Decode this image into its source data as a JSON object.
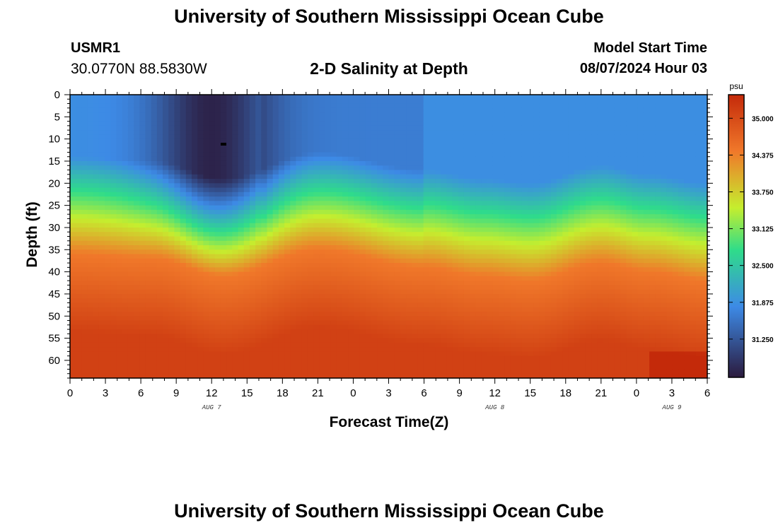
{
  "header": {
    "title": "University of Southern Mississippi Ocean Cube",
    "station_id": "USMR1",
    "coordinates": "30.0770N  88.5830W",
    "subtitle": "2-D Salinity at Depth",
    "model_start_label": "Model Start Time",
    "model_start_value": "08/07/2024 Hour 03"
  },
  "footer": {
    "title": "University of Southern Mississippi Ocean Cube"
  },
  "colors": {
    "low": "#2b1a3d",
    "mid_low": "#3d8ae6",
    "mid": "#2fdc8a",
    "mid_high": "#c5ee2e",
    "high": "#f0782a",
    "max": "#c42a0a"
  },
  "chart_data": {
    "type": "heatmap",
    "title": "2-D Salinity at Depth",
    "xlabel": "Forecast Time(Z)",
    "ylabel": "Depth (ft)",
    "x_hours": [
      0,
      54
    ],
    "x_tick_labels": [
      "0",
      "3",
      "6",
      "9",
      "12",
      "15",
      "18",
      "21",
      "0",
      "3",
      "6",
      "9",
      "12",
      "15",
      "18",
      "21",
      "0",
      "3",
      "6"
    ],
    "date_labels": [
      {
        "text": "AUG 7",
        "hour": 12
      },
      {
        "text": "AUG 8",
        "hour": 36
      },
      {
        "text": "AUG 9",
        "hour": 51
      }
    ],
    "ylim": [
      0,
      64
    ],
    "y_ticks": [
      0,
      5,
      10,
      15,
      20,
      25,
      30,
      35,
      40,
      45,
      50,
      55,
      60
    ],
    "colorbar": {
      "unit": "psu",
      "range": [
        30.6,
        35.4
      ],
      "ticks": [
        "35.000",
        "34.375",
        "33.750",
        "33.125",
        "32.500",
        "31.875",
        "31.250"
      ],
      "tick_values": [
        35.0,
        34.375,
        33.75,
        33.125,
        32.5,
        31.875,
        31.25
      ]
    },
    "halocline_depth_ft": [
      {
        "hour": 0,
        "depth": 22
      },
      {
        "hour": 7,
        "depth": 23
      },
      {
        "hour": 13,
        "depth": 27
      },
      {
        "hour": 21,
        "depth": 21
      },
      {
        "hour": 30,
        "depth": 25
      },
      {
        "hour": 35,
        "depth": 27
      },
      {
        "hour": 39,
        "depth": 28
      },
      {
        "hour": 45,
        "depth": 24
      },
      {
        "hour": 49,
        "depth": 26
      },
      {
        "hour": 54,
        "depth": 28
      }
    ]
  }
}
